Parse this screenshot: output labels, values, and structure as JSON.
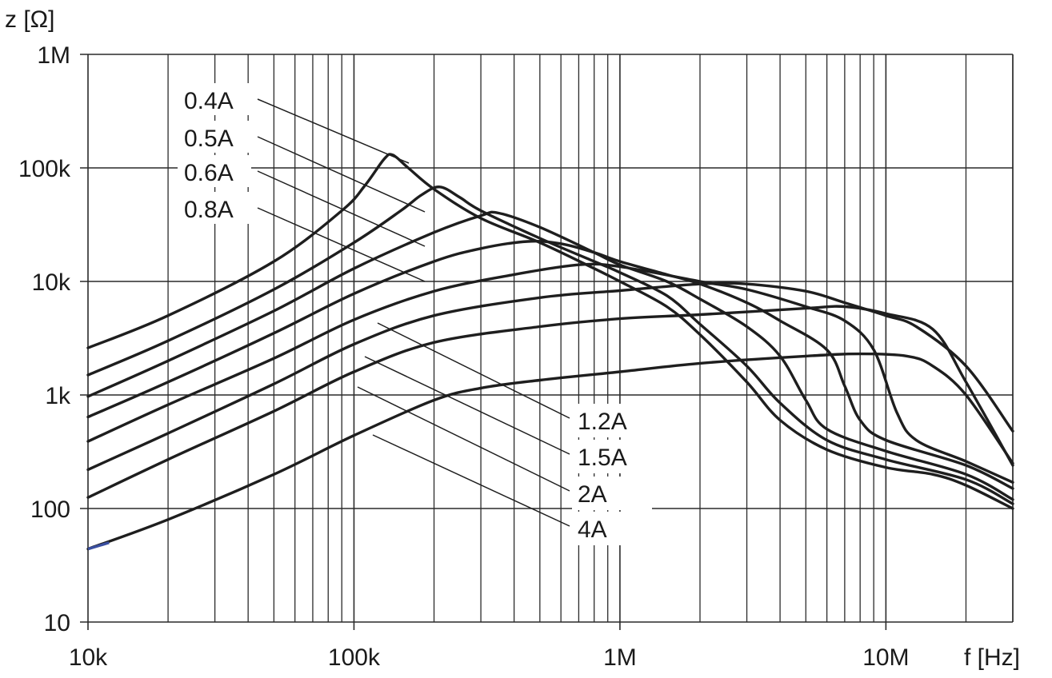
{
  "chart_data": {
    "type": "line",
    "xlabel": "f [Hz]",
    "ylabel": "z [Ω]",
    "x_scale": "log",
    "y_scale": "log",
    "xlim": [
      10000,
      30000000
    ],
    "ylim": [
      10,
      1000000
    ],
    "x_ticks": [
      {
        "value": 10000,
        "label": "10k"
      },
      {
        "value": 100000,
        "label": "100k"
      },
      {
        "value": 1000000,
        "label": "1M"
      },
      {
        "value": 10000000,
        "label": "10M"
      }
    ],
    "y_ticks": [
      {
        "value": 10,
        "label": "10"
      },
      {
        "value": 100,
        "label": "100"
      },
      {
        "value": 1000,
        "label": "1k"
      },
      {
        "value": 10000,
        "label": "10k"
      },
      {
        "value": 100000,
        "label": "100k"
      },
      {
        "value": 1000000,
        "label": "1M"
      }
    ],
    "grid": true,
    "colors": {
      "line": "#1e1e1e",
      "grid": "#2a2a2a",
      "start_segment": "#3a4fa0"
    },
    "series": [
      {
        "name": "0.4A",
        "points": [
          [
            10000,
            2600
          ],
          [
            20000,
            5000
          ],
          [
            50000,
            15000
          ],
          [
            90000,
            42000
          ],
          [
            110000,
            70000
          ],
          [
            130000,
            120000
          ],
          [
            140000,
            130000
          ],
          [
            160000,
            100000
          ],
          [
            200000,
            65000
          ],
          [
            300000,
            36000
          ],
          [
            500000,
            22000
          ],
          [
            800000,
            13000
          ],
          [
            1000000,
            10000
          ],
          [
            1500000,
            6000
          ],
          [
            2000000,
            3400
          ],
          [
            3000000,
            1300
          ],
          [
            4000000,
            600
          ],
          [
            6000000,
            330
          ],
          [
            10000000,
            230
          ],
          [
            15000000,
            200
          ],
          [
            20000000,
            160
          ],
          [
            30000000,
            100
          ]
        ]
      },
      {
        "name": "0.5A",
        "points": [
          [
            10000,
            1500
          ],
          [
            20000,
            3000
          ],
          [
            50000,
            8500
          ],
          [
            100000,
            22000
          ],
          [
            150000,
            42000
          ],
          [
            180000,
            58000
          ],
          [
            210000,
            68000
          ],
          [
            250000,
            55000
          ],
          [
            300000,
            42000
          ],
          [
            500000,
            24000
          ],
          [
            800000,
            15000
          ],
          [
            1000000,
            12000
          ],
          [
            1500000,
            7500
          ],
          [
            2000000,
            4200
          ],
          [
            3000000,
            1800
          ],
          [
            4000000,
            850
          ],
          [
            6000000,
            400
          ],
          [
            10000000,
            270
          ],
          [
            20000000,
            180
          ],
          [
            30000000,
            110
          ]
        ]
      },
      {
        "name": "0.6A",
        "points": [
          [
            10000,
            970
          ],
          [
            20000,
            2000
          ],
          [
            50000,
            5500
          ],
          [
            100000,
            13000
          ],
          [
            200000,
            27000
          ],
          [
            300000,
            38000
          ],
          [
            350000,
            40000
          ],
          [
            500000,
            30000
          ],
          [
            800000,
            18000
          ],
          [
            1000000,
            14000
          ],
          [
            1500000,
            10000
          ],
          [
            2000000,
            7000
          ],
          [
            3000000,
            4000
          ],
          [
            4000000,
            2200
          ],
          [
            5000000,
            900
          ],
          [
            6000000,
            500
          ],
          [
            10000000,
            320
          ],
          [
            20000000,
            200
          ],
          [
            30000000,
            120
          ]
        ]
      },
      {
        "name": "0.8A",
        "points": [
          [
            10000,
            640
          ],
          [
            20000,
            1300
          ],
          [
            50000,
            3500
          ],
          [
            100000,
            7800
          ],
          [
            200000,
            15000
          ],
          [
            300000,
            19500
          ],
          [
            450000,
            22500
          ],
          [
            600000,
            21500
          ],
          [
            800000,
            18000
          ],
          [
            1000000,
            15000
          ],
          [
            1500000,
            11500
          ],
          [
            2000000,
            9500
          ],
          [
            3000000,
            6500
          ],
          [
            4000000,
            4500
          ],
          [
            6000000,
            2500
          ],
          [
            7000000,
            1200
          ],
          [
            8000000,
            600
          ],
          [
            10000000,
            400
          ],
          [
            20000000,
            240
          ],
          [
            30000000,
            150
          ]
        ]
      },
      {
        "name": "1.2A",
        "points": [
          [
            10000,
            390
          ],
          [
            20000,
            820
          ],
          [
            50000,
            2100
          ],
          [
            100000,
            4600
          ],
          [
            200000,
            8200
          ],
          [
            400000,
            11500
          ],
          [
            700000,
            14000
          ],
          [
            1000000,
            13500
          ],
          [
            2000000,
            10000
          ],
          [
            3000000,
            8500
          ],
          [
            5000000,
            6000
          ],
          [
            7000000,
            4500
          ],
          [
            9000000,
            2500
          ],
          [
            11000000,
            700
          ],
          [
            13000000,
            400
          ],
          [
            20000000,
            260
          ],
          [
            30000000,
            170
          ]
        ]
      },
      {
        "name": "1.5A",
        "points": [
          [
            10000,
            220
          ],
          [
            20000,
            460
          ],
          [
            50000,
            1250
          ],
          [
            100000,
            2800
          ],
          [
            200000,
            5000
          ],
          [
            500000,
            7200
          ],
          [
            1000000,
            8300
          ],
          [
            2000000,
            9500
          ],
          [
            3000000,
            9500
          ],
          [
            5000000,
            8200
          ],
          [
            7000000,
            6500
          ],
          [
            10000000,
            5000
          ],
          [
            13000000,
            4000
          ],
          [
            20000000,
            1800
          ],
          [
            30000000,
            480
          ]
        ]
      },
      {
        "name": "2A",
        "points": [
          [
            10000,
            125
          ],
          [
            20000,
            270
          ],
          [
            50000,
            720
          ],
          [
            100000,
            1600
          ],
          [
            200000,
            2900
          ],
          [
            500000,
            4000
          ],
          [
            1000000,
            4700
          ],
          [
            2000000,
            5100
          ],
          [
            5000000,
            5800
          ],
          [
            7000000,
            6000
          ],
          [
            10000000,
            5200
          ],
          [
            15000000,
            3800
          ],
          [
            20000000,
            1300
          ],
          [
            30000000,
            240
          ]
        ]
      },
      {
        "name": "4A",
        "points": [
          [
            10000,
            44
          ],
          [
            20000,
            80
          ],
          [
            50000,
            200
          ],
          [
            100000,
            440
          ],
          [
            200000,
            900
          ],
          [
            300000,
            1150
          ],
          [
            500000,
            1350
          ],
          [
            1000000,
            1600
          ],
          [
            2000000,
            1900
          ],
          [
            5000000,
            2200
          ],
          [
            8000000,
            2300
          ],
          [
            12000000,
            2200
          ],
          [
            15000000,
            1800
          ],
          [
            20000000,
            1000
          ],
          [
            30000000,
            250
          ]
        ]
      }
    ],
    "legend": {
      "upper": [
        {
          "label": "0.4A",
          "target": [
            140000,
            120000
          ]
        },
        {
          "label": "0.5A",
          "target": [
            140000,
            45000
          ]
        },
        {
          "label": "0.6A",
          "target": [
            140000,
            23000
          ]
        },
        {
          "label": "0.8A",
          "target": [
            140000,
            9000
          ]
        }
      ],
      "lower": [
        {
          "label": "1.2A",
          "target": [
            110000,
            3000
          ]
        },
        {
          "label": "1.5A",
          "target": [
            105000,
            1750
          ]
        },
        {
          "label": "2A",
          "target": [
            100000,
            1100
          ]
        },
        {
          "label": "4A",
          "target": [
            140000,
            520
          ]
        }
      ]
    }
  }
}
